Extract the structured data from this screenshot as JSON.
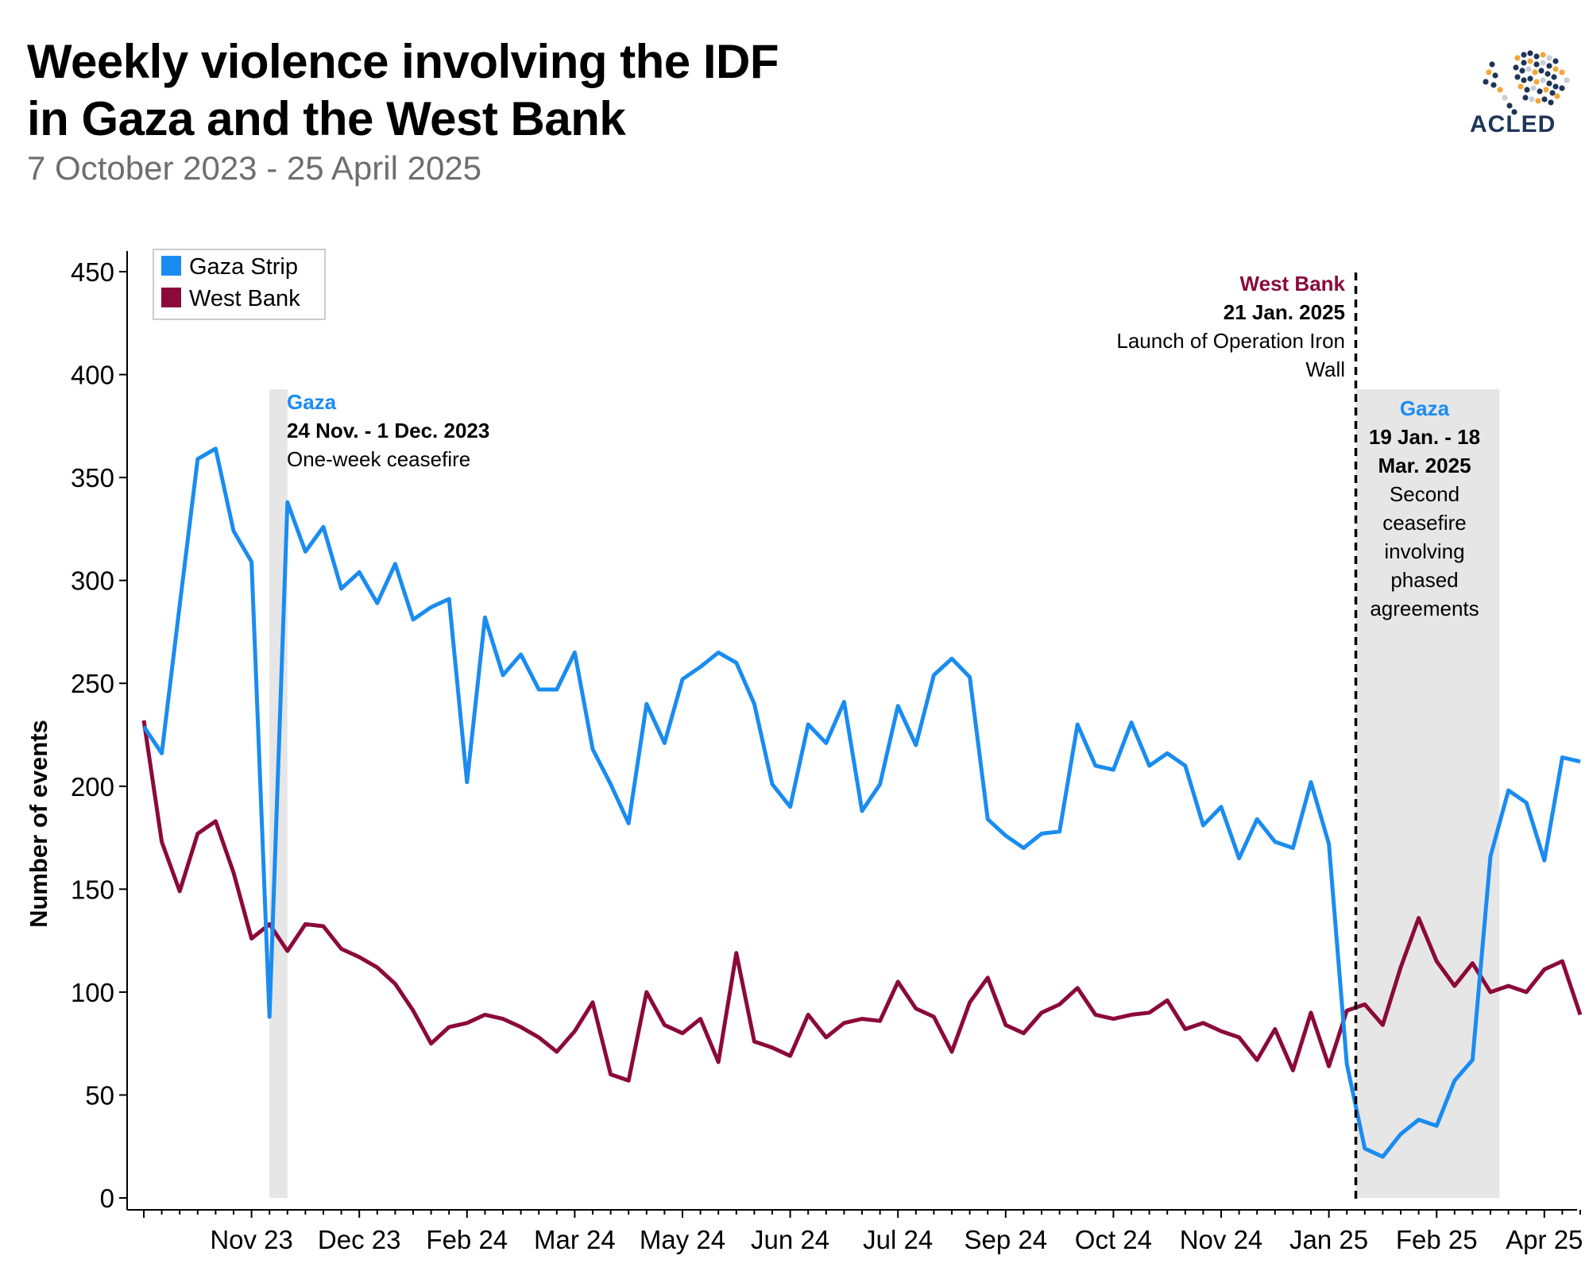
{
  "header": {
    "title_line1": "Weekly violence involving the IDF",
    "title_line2": "in Gaza and the West Bank",
    "subtitle": "7 October 2023 - 25 April 2025",
    "logo_text": "ACLED"
  },
  "colors": {
    "gaza": "#1a8cf0",
    "west_bank": "#8b0a3a",
    "shade": "#e6e6e6",
    "logo_navy": "#1d3557",
    "logo_orange": "#f4a63a"
  },
  "chart_data": {
    "type": "line",
    "title": "Weekly violence involving the IDF in Gaza and the West Bank",
    "ylabel": "Number of events",
    "xlabel": "",
    "ylim": [
      0,
      450
    ],
    "yticks": [
      0,
      50,
      100,
      150,
      200,
      250,
      300,
      350,
      400,
      450
    ],
    "xticks": [
      {
        "label": "Nov 23",
        "week": 6
      },
      {
        "label": "Dec 23",
        "week": 12
      },
      {
        "label": "Feb 24",
        "week": 18
      },
      {
        "label": "Mar 24",
        "week": 24
      },
      {
        "label": "May 24",
        "week": 30
      },
      {
        "label": "Jun 24",
        "week": 36
      },
      {
        "label": "Jul 24",
        "week": 42
      },
      {
        "label": "Sep 24",
        "week": 48
      },
      {
        "label": "Oct 24",
        "week": 54
      },
      {
        "label": "Nov 24",
        "week": 60
      },
      {
        "label": "Jan 25",
        "week": 66
      },
      {
        "label": "Feb 25",
        "week": 72
      },
      {
        "label": "Apr 25",
        "week": 78
      }
    ],
    "legend": [
      "Gaza Strip",
      "West Bank"
    ],
    "series": [
      {
        "name": "Gaza Strip",
        "color": "#1a8cf0",
        "values": [
          229,
          216,
          288,
          359,
          364,
          324,
          309,
          88,
          338,
          314,
          326,
          296,
          304,
          289,
          308,
          281,
          287,
          291,
          202,
          282,
          254,
          264,
          247,
          247,
          265,
          218,
          201,
          182,
          240,
          221,
          252,
          258,
          265,
          260,
          240,
          201,
          190,
          230,
          221,
          241,
          188,
          201,
          239,
          220,
          254,
          262,
          253,
          184,
          176,
          170,
          177,
          178,
          230,
          210,
          208,
          231,
          210,
          216,
          210,
          181,
          190,
          165,
          184,
          173,
          170,
          202,
          172,
          65,
          24,
          20,
          31,
          38,
          35,
          57,
          67,
          166,
          198,
          192,
          164,
          214,
          212
        ]
      },
      {
        "name": "West Bank",
        "color": "#8b0a3a",
        "values": [
          232,
          173,
          149,
          177,
          183,
          158,
          126,
          133,
          120,
          133,
          132,
          121,
          117,
          112,
          104,
          91,
          75,
          83,
          85,
          89,
          87,
          83,
          78,
          71,
          81,
          95,
          60,
          57,
          100,
          84,
          80,
          87,
          66,
          119,
          76,
          73,
          69,
          89,
          78,
          85,
          87,
          86,
          105,
          92,
          88,
          71,
          95,
          107,
          84,
          80,
          90,
          94,
          102,
          89,
          87,
          89,
          90,
          96,
          82,
          85,
          81,
          78,
          67,
          82,
          62,
          90,
          64,
          91,
          94,
          84,
          112,
          136,
          115,
          103,
          114,
          100,
          103,
          100,
          111,
          115,
          89
        ]
      }
    ],
    "shaded_periods": [
      {
        "start_week": 7,
        "end_week": 8
      },
      {
        "start_week": 67.5,
        "end_week": 75.5
      }
    ],
    "annotations": {
      "gaza1": {
        "region": "Gaza",
        "date": "24 Nov.  - 1 Dec. 2023",
        "text": "One-week ceasefire"
      },
      "west_bank": {
        "region": "West Bank",
        "date": "21 Jan. 2025",
        "text_line1": "Launch of Operation Iron",
        "text_line2": "Wall",
        "week": 67.5
      },
      "gaza2": {
        "region": "Gaza",
        "date_line1": "19 Jan. - 18",
        "date_line2": "Mar. 2025",
        "text_lines": [
          "Second",
          "ceasefire",
          "involving",
          "phased",
          "agreements"
        ]
      }
    }
  }
}
